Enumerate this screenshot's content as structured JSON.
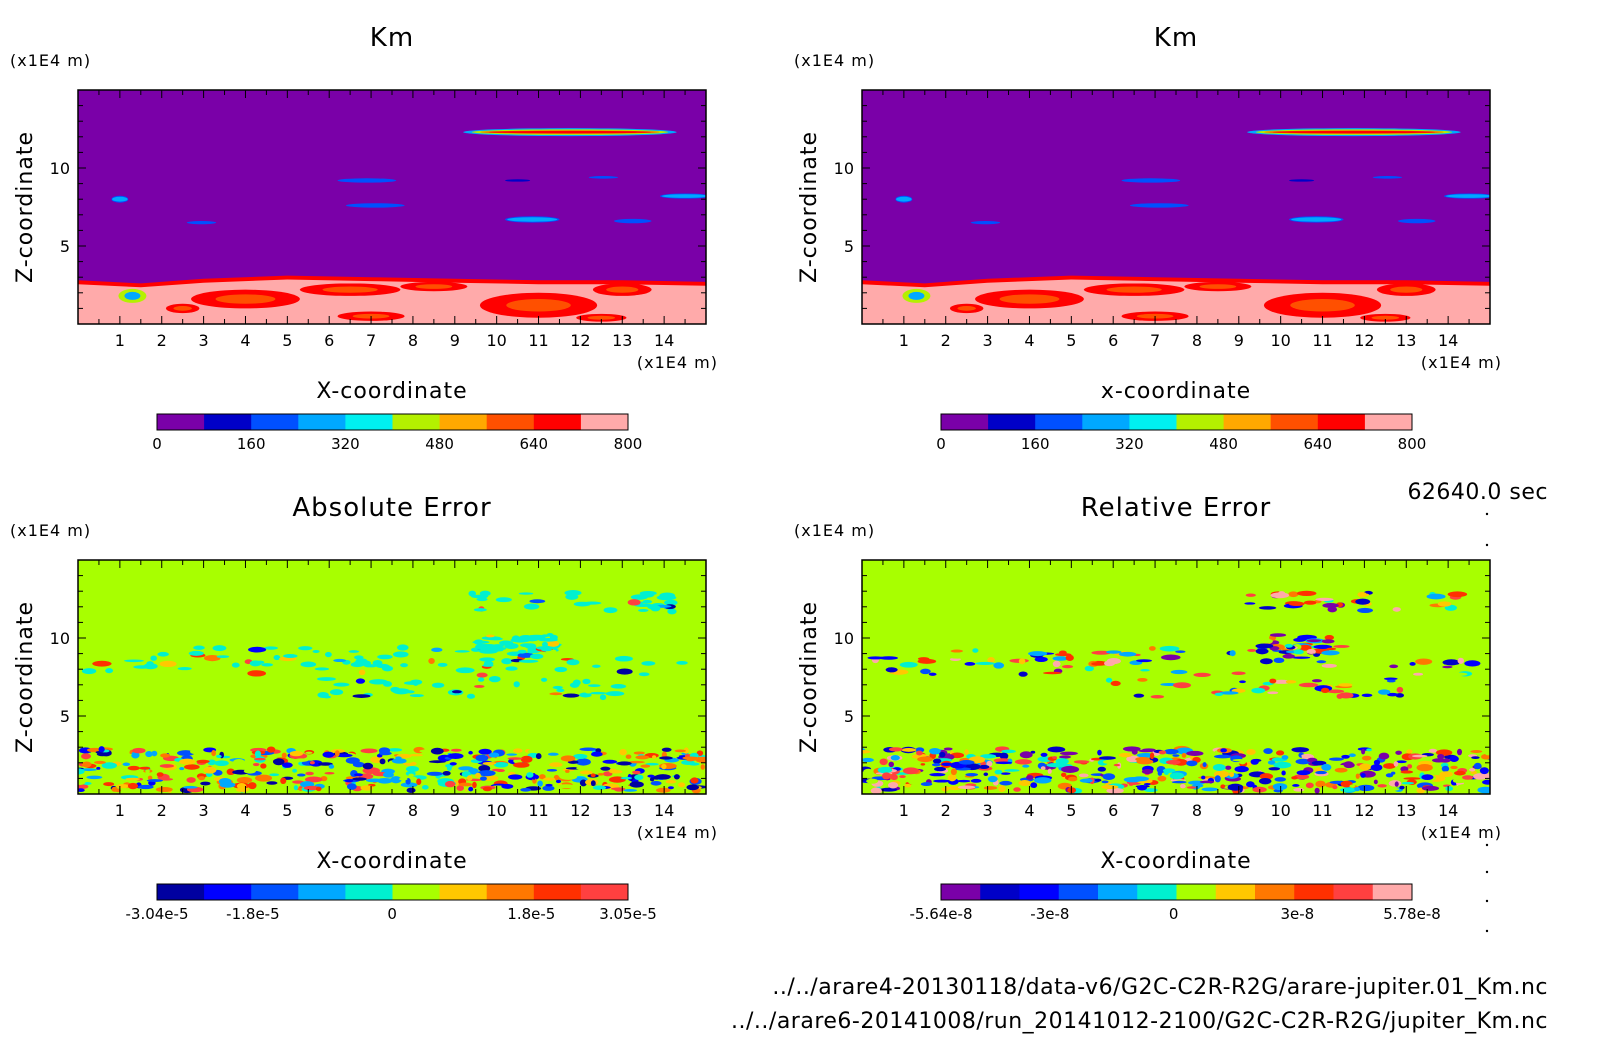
{
  "footer": {
    "time_label": "62640.0 sec",
    "file_1": "../../arare4-20130118/data-v6/G2C-C2R-R2G/arare-jupiter.01_Km.nc",
    "file_2": "../../arare6-20141008/run_20141012-2100/G2C-C2R-R2G/jupiter_Km.nc"
  },
  "chart_data": [
    {
      "type": "heatmap",
      "title": "Km",
      "xlabel": "X-coordinate",
      "ylabel": "Z-coordinate",
      "x_unit": "(x1E4 m)",
      "y_unit": "(x1E4 m)",
      "xticks": [
        1,
        2,
        3,
        4,
        5,
        6,
        7,
        8,
        9,
        10,
        11,
        12,
        13,
        14
      ],
      "yticks": [
        5,
        10
      ],
      "xlim": [
        0,
        15
      ],
      "ylim": [
        0,
        15
      ],
      "colorbar_ticks": [
        "0",
        "160",
        "320",
        "480",
        "640",
        "800"
      ],
      "colorbar_colors": [
        "#7a00a8",
        "#0000c8",
        "#0050ff",
        "#00a8ff",
        "#00f0f0",
        "#b4f000",
        "#ffa800",
        "#ff5000",
        "#ff0000",
        "#ffaaaa"
      ],
      "field": "km"
    },
    {
      "type": "heatmap",
      "title": "Km",
      "xlabel": "x-coordinate",
      "ylabel": "Z-coordinate",
      "x_unit": "(x1E4 m)",
      "y_unit": "(x1E4 m)",
      "xticks": [
        1,
        2,
        3,
        4,
        5,
        6,
        7,
        8,
        9,
        10,
        11,
        12,
        13,
        14
      ],
      "yticks": [
        5,
        10
      ],
      "xlim": [
        0,
        15
      ],
      "ylim": [
        0,
        15
      ],
      "colorbar_ticks": [
        "0",
        "160",
        "320",
        "480",
        "640",
        "800"
      ],
      "colorbar_colors": [
        "#7a00a8",
        "#0000c8",
        "#0050ff",
        "#00a8ff",
        "#00f0f0",
        "#b4f000",
        "#ffa800",
        "#ff5000",
        "#ff0000",
        "#ffaaaa"
      ],
      "field": "km"
    },
    {
      "type": "heatmap",
      "title": "Absolute Error",
      "xlabel": "X-coordinate",
      "ylabel": "Z-coordinate",
      "x_unit": "(x1E4 m)",
      "y_unit": "(x1E4 m)",
      "xticks": [
        1,
        2,
        3,
        4,
        5,
        6,
        7,
        8,
        9,
        10,
        11,
        12,
        13,
        14
      ],
      "yticks": [
        5,
        10
      ],
      "xlim": [
        0,
        15
      ],
      "ylim": [
        0,
        15
      ],
      "colorbar_ticks": [
        "-3.04e-5",
        "-1.8e-5",
        "0",
        "1.8e-5",
        "3.05e-5"
      ],
      "colorbar_range": [
        -3.04e-05,
        3.05e-05
      ],
      "colorbar_tick_values": [
        -3.04e-05,
        -1.8e-05,
        0,
        1.8e-05,
        3.05e-05
      ],
      "colorbar_colors": [
        "#0000a0",
        "#0000ff",
        "#0050ff",
        "#00a8ff",
        "#00f0d0",
        "#a8ff00",
        "#ffc800",
        "#ff7800",
        "#ff3000",
        "#ff4040"
      ],
      "field": "error"
    },
    {
      "type": "heatmap",
      "title": "Relative Error",
      "xlabel": "X-coordinate",
      "ylabel": "Z-coordinate",
      "x_unit": "(x1E4 m)",
      "y_unit": "(x1E4 m)",
      "xticks": [
        1,
        2,
        3,
        4,
        5,
        6,
        7,
        8,
        9,
        10,
        11,
        12,
        13,
        14
      ],
      "yticks": [
        5,
        10
      ],
      "xlim": [
        0,
        15
      ],
      "ylim": [
        0,
        15
      ],
      "colorbar_ticks": [
        "-5.64e-8",
        "-3e-8",
        "0",
        "3e-8",
        "5.78e-8"
      ],
      "colorbar_range": [
        -5.64e-08,
        5.78e-08
      ],
      "colorbar_tick_values": [
        -5.64e-08,
        -3e-08,
        0,
        3e-08,
        5.78e-08
      ],
      "colorbar_colors": [
        "#7a00a8",
        "#0000c8",
        "#0000ff",
        "#0050ff",
        "#00a8ff",
        "#00f0d0",
        "#a8ff00",
        "#ffc800",
        "#ff7800",
        "#ff3000",
        "#ff4040",
        "#ffaaaa"
      ],
      "field": "error"
    }
  ]
}
